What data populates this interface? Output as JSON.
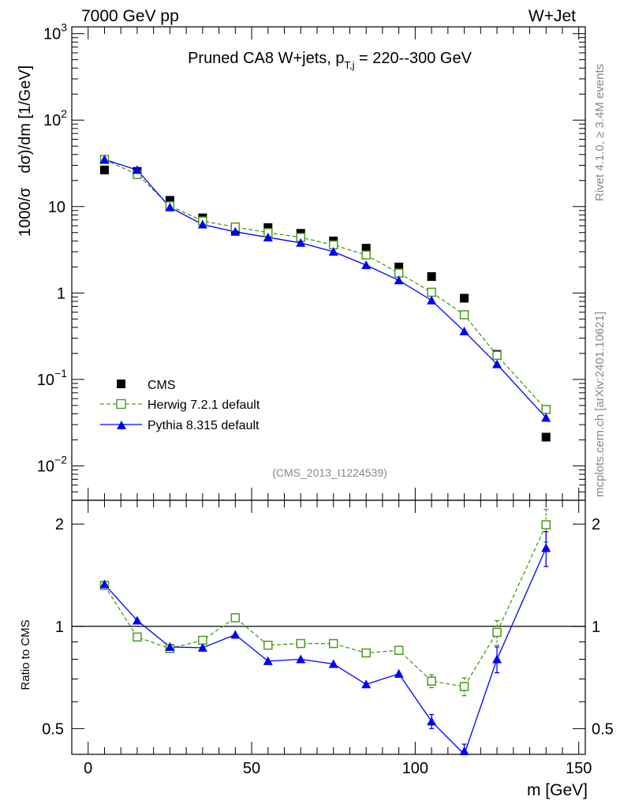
{
  "header": {
    "left": "7000 GeV pp",
    "right": "W+Jet"
  },
  "side_labels": {
    "rivet": "Rivet 4.1.0, ≥ 3.4M events",
    "mcplots": "mcplots.cern.ch [arXiv:2401.10621]"
  },
  "chart_data": [
    {
      "type": "scatter",
      "panel": "main",
      "title": "Pruned CA8 W+jets, p_T,j = 220--300 GeV",
      "title_parts": {
        "pre": "Pruned CA8 W+jets, p",
        "sub": "T,j",
        "post": " = 220--300 GeV"
      },
      "ylabel": "1000/σ dσ/dm [1/GeV]",
      "ylabel_parts": {
        "a": "1000/σ",
        "b": "dσ)/dm [1/GeV]"
      },
      "yscale": "log",
      "ylim": [
        0.004,
        1200
      ],
      "xlim": [
        -5,
        152
      ],
      "yticks": [
        {
          "v": 1000,
          "base": "10",
          "exp": "3"
        },
        {
          "v": 100,
          "base": "10",
          "exp": "2"
        },
        {
          "v": 10,
          "base": "10",
          "exp": ""
        },
        {
          "v": 1,
          "base": "1",
          "exp": ""
        },
        {
          "v": 0.1,
          "base": "10",
          "exp": "−1"
        },
        {
          "v": 0.01,
          "base": "10",
          "exp": "−2"
        }
      ],
      "watermark": "(CMS_2013_I1224539)",
      "legend_position": "bottom-left",
      "series": [
        {
          "name": "CMS",
          "label": "CMS",
          "marker": "square-filled",
          "color": "#000000",
          "x": [
            5,
            15,
            25,
            35,
            45,
            55,
            65,
            75,
            85,
            95,
            105,
            115,
            125,
            140
          ],
          "y": [
            26.5,
            25.5,
            11.8,
            7.4,
            5.4,
            5.7,
            4.9,
            4.0,
            3.3,
            2.0,
            1.55,
            0.87,
            0.195,
            0.0215
          ]
        },
        {
          "name": "Herwig 7.2.1 default",
          "label": "Herwig 7.2.1 default",
          "marker": "square-open",
          "color": "#4a9a1c",
          "line": "dashed",
          "x": [
            5,
            15,
            25,
            35,
            45,
            55,
            65,
            75,
            85,
            95,
            105,
            115,
            125,
            140
          ],
          "y": [
            35.0,
            23.5,
            10.2,
            6.8,
            5.8,
            5.0,
            4.4,
            3.6,
            2.75,
            1.7,
            1.02,
            0.56,
            0.19,
            0.045
          ]
        },
        {
          "name": "Pythia 8.315 default",
          "label": "Pythia 8.315 default",
          "marker": "triangle-filled",
          "color": "#0000ff",
          "line": "solid",
          "x": [
            5,
            15,
            25,
            35,
            45,
            55,
            65,
            75,
            85,
            95,
            105,
            115,
            125,
            140
          ],
          "y": [
            35.0,
            26.5,
            9.8,
            6.2,
            5.1,
            4.4,
            3.8,
            3.0,
            2.1,
            1.4,
            0.82,
            0.36,
            0.15,
            0.036
          ]
        }
      ]
    },
    {
      "type": "scatter",
      "panel": "ratio",
      "ylabel": "Ratio to CMS",
      "xlabel": "m [GeV]",
      "yscale": "log",
      "ylim": [
        0.42,
        2.35
      ],
      "xlim": [
        -5,
        152
      ],
      "xticks": [
        0,
        50,
        100,
        150
      ],
      "yticks": [
        0.5,
        1,
        2
      ],
      "ytick_labels": [
        "0.5",
        "1",
        "2"
      ],
      "reference_line": 1,
      "series": [
        {
          "name": "Herwig 7.2.1 default",
          "marker": "square-open",
          "color": "#4a9a1c",
          "line": "dashed",
          "x": [
            5,
            15,
            25,
            35,
            45,
            55,
            65,
            75,
            85,
            95,
            105,
            115,
            125,
            140
          ],
          "y": [
            1.32,
            0.93,
            0.86,
            0.91,
            1.06,
            0.88,
            0.89,
            0.89,
            0.835,
            0.85,
            0.69,
            0.665,
            0.96,
            1.99
          ],
          "err": [
            0.01,
            0.01,
            0.01,
            0.01,
            0.01,
            0.01,
            0.01,
            0.01,
            0.015,
            0.02,
            0.03,
            0.04,
            0.08,
            0.22
          ]
        },
        {
          "name": "Pythia 8.315 default",
          "marker": "triangle-filled",
          "color": "#0000ff",
          "line": "solid",
          "x": [
            5,
            15,
            25,
            35,
            45,
            55,
            65,
            75,
            85,
            95,
            105,
            115,
            125,
            140
          ],
          "y": [
            1.33,
            1.04,
            0.87,
            0.865,
            0.945,
            0.79,
            0.8,
            0.775,
            0.675,
            0.725,
            0.525,
            0.42,
            0.8,
            1.7
          ],
          "err": [
            0.01,
            0.01,
            0.01,
            0.01,
            0.01,
            0.01,
            0.01,
            0.01,
            0.015,
            0.02,
            0.025,
            0.03,
            0.07,
            0.2
          ]
        }
      ]
    }
  ]
}
